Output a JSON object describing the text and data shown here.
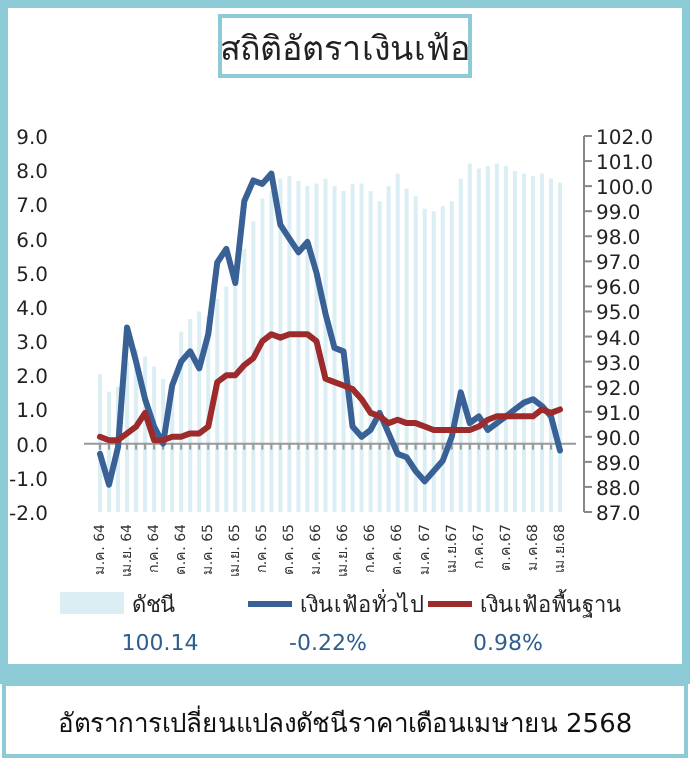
{
  "chart_data": {
    "type": "line",
    "title": "สถิติอัตราเงินเฟ้อ",
    "categories": [
      "ม.ค. 64",
      null,
      null,
      "เม.ย. 64",
      null,
      null,
      "ก.ค. 64",
      null,
      null,
      "ต.ค. 64",
      null,
      null,
      "ม.ค. 65",
      null,
      null,
      "เม.ย. 65",
      null,
      null,
      "ก.ค. 65",
      null,
      null,
      "ต.ค. 65",
      null,
      null,
      "ม.ค. 66",
      null,
      null,
      "เม.ย. 66",
      null,
      null,
      "ก.ค. 66",
      null,
      null,
      "ต.ค. 66",
      null,
      null,
      "ม.ค. 67",
      null,
      null,
      "เม.ย.67",
      null,
      null,
      "ก.ค.67",
      null,
      null,
      "ต.ค.67",
      null,
      null,
      "ม.ค.68",
      null,
      null,
      "เม.ย.68"
    ],
    "series": [
      {
        "name": "ดัชนี",
        "type": "bar",
        "axis": "y2",
        "color": "#dbeef4",
        "values": [
          92.5,
          91.8,
          92.0,
          93.0,
          93.5,
          93.2,
          92.8,
          92.3,
          92.0,
          94.2,
          94.7,
          95.0,
          94.8,
          95.5,
          96.0,
          96.2,
          97.5,
          98.6,
          99.5,
          99.8,
          100.3,
          100.4,
          100.2,
          100.0,
          100.1,
          100.3,
          100.0,
          99.8,
          100.1,
          100.1,
          99.8,
          99.4,
          100.0,
          100.5,
          99.9,
          99.6,
          99.1,
          99.0,
          99.2,
          99.4,
          100.3,
          100.9,
          100.7,
          100.8,
          100.9,
          100.8,
          100.6,
          100.5,
          100.4,
          100.5,
          100.3,
          100.14
        ]
      },
      {
        "name": "เงินเฟ้อทั่วไป",
        "color": "#3a6195",
        "values": [
          -0.3,
          -1.2,
          -0.1,
          3.4,
          2.4,
          1.3,
          0.5,
          0.0,
          1.7,
          2.4,
          2.7,
          2.2,
          3.2,
          5.3,
          5.7,
          4.7,
          7.1,
          7.7,
          7.6,
          7.9,
          6.4,
          6.0,
          5.6,
          5.9,
          5.0,
          3.8,
          2.8,
          2.7,
          0.5,
          0.2,
          0.4,
          0.9,
          0.3,
          -0.3,
          -0.4,
          -0.8,
          -1.1,
          -0.8,
          -0.5,
          0.2,
          1.5,
          0.6,
          0.8,
          0.4,
          0.6,
          0.8,
          1.0,
          1.2,
          1.3,
          1.1,
          0.8,
          -0.2
        ]
      },
      {
        "name": "เงินเฟ้อพื้นฐาน",
        "color": "#9e2b2b",
        "values": [
          0.2,
          0.1,
          0.1,
          0.3,
          0.5,
          0.9,
          0.1,
          0.1,
          0.2,
          0.2,
          0.3,
          0.3,
          0.5,
          1.8,
          2.0,
          2.0,
          2.3,
          2.5,
          3.0,
          3.2,
          3.1,
          3.2,
          3.2,
          3.2,
          3.0,
          1.9,
          1.8,
          1.7,
          1.6,
          1.3,
          0.9,
          0.8,
          0.6,
          0.7,
          0.6,
          0.6,
          0.5,
          0.4,
          0.4,
          0.4,
          0.4,
          0.4,
          0.5,
          0.7,
          0.8,
          0.8,
          0.8,
          0.8,
          0.8,
          1.0,
          0.9,
          1.0
        ]
      }
    ],
    "ylim": [
      -2,
      9
    ],
    "yticks": [
      {
        "value": -2,
        "label": "-2.0"
      },
      {
        "value": -1,
        "label": "-1.0"
      },
      {
        "value": 0,
        "label": "0.0"
      },
      {
        "value": 1,
        "label": "1.0"
      },
      {
        "value": 2,
        "label": "2.0"
      },
      {
        "value": 3,
        "label": "3.0"
      },
      {
        "value": 4,
        "label": "4.0"
      },
      {
        "value": 5,
        "label": "5.0"
      },
      {
        "value": 6,
        "label": "6.0"
      },
      {
        "value": 7,
        "label": "7.0"
      },
      {
        "value": 8,
        "label": "8.0"
      },
      {
        "value": 9,
        "label": "9.0"
      }
    ],
    "y2lim": [
      87,
      102
    ],
    "y2ticks": [
      {
        "value": 87,
        "label": "87.0"
      },
      {
        "value": 88,
        "label": "88.0"
      },
      {
        "value": 89,
        "label": "89.0"
      },
      {
        "value": 90,
        "label": "90.0"
      },
      {
        "value": 91,
        "label": "91.0"
      },
      {
        "value": 92,
        "label": "92.0"
      },
      {
        "value": 93,
        "label": "93.0"
      },
      {
        "value": 94,
        "label": "94.0"
      },
      {
        "value": 95,
        "label": "95.0"
      },
      {
        "value": 96,
        "label": "96.0"
      },
      {
        "value": 97,
        "label": "97.0"
      },
      {
        "value": 98,
        "label": "98.0"
      },
      {
        "value": 99,
        "label": "99.0"
      },
      {
        "value": 100,
        "label": "100.0"
      },
      {
        "value": 101,
        "label": "101.0"
      },
      {
        "value": 102,
        "label": "102.0"
      }
    ],
    "legend": "bottom",
    "marker": "none",
    "line_style": "solid",
    "annotations": [
      "100.14",
      "-0.22%",
      "0.98%",
      "อัตราการเปลี่ยนแปลงดัชนีราคาเดือนเมษายน 2568"
    ]
  }
}
